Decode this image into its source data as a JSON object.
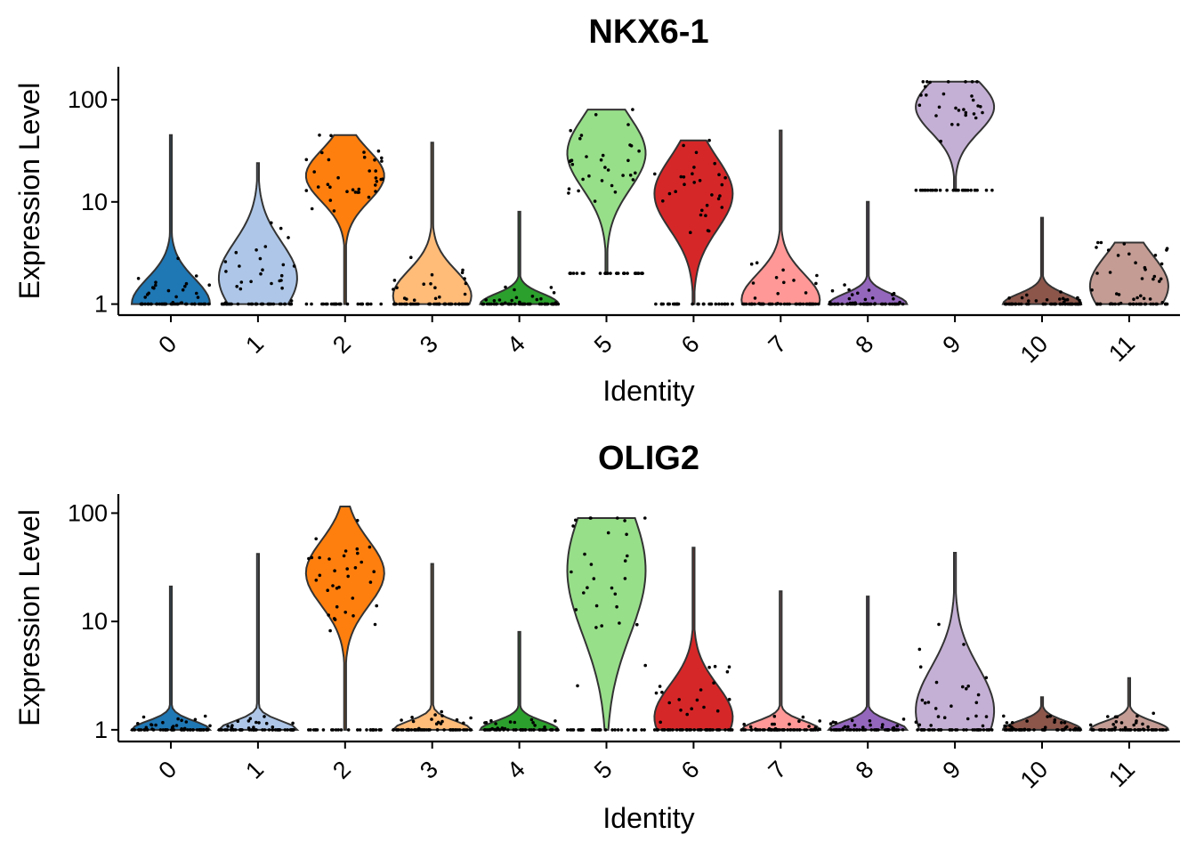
{
  "chart_data": [
    {
      "type": "violin",
      "title": "NKX6-1",
      "xlabel": "Identity",
      "ylabel": "Expression Level",
      "yscale": "log",
      "ylim": [
        0.78,
        210
      ],
      "yticks": [
        1,
        10,
        100
      ],
      "ytick_labels": [
        "1",
        "10",
        "100"
      ],
      "categories": [
        "0",
        "1",
        "2",
        "3",
        "4",
        "5",
        "6",
        "7",
        "8",
        "9",
        "10",
        "11"
      ],
      "colors": [
        "#1f77b4",
        "#aec7e8",
        "#ff7f0e",
        "#ffbb78",
        "#2ca02c",
        "#98df8a",
        "#d62728",
        "#ff9896",
        "#9467bd",
        "#c5b0d5",
        "#8c564b",
        "#c49c94"
      ],
      "groups": [
        {
          "id": "0",
          "min": 1,
          "max": 45,
          "mode": 1,
          "spread": 0.25
        },
        {
          "id": "1",
          "min": 1,
          "max": 24,
          "mode": 1.8,
          "spread": 0.35
        },
        {
          "id": "2",
          "min": 1,
          "max": 45,
          "mode": 18,
          "spread": 0.25
        },
        {
          "id": "3",
          "min": 1,
          "max": 38,
          "mode": 1.2,
          "spread": 0.25
        },
        {
          "id": "4",
          "min": 1,
          "max": 8,
          "mode": 1,
          "spread": 0.1
        },
        {
          "id": "5",
          "min": 2,
          "max": 80,
          "mode": 30,
          "spread": 0.35
        },
        {
          "id": "6",
          "min": 1,
          "max": 40,
          "mode": 12,
          "spread": 0.35
        },
        {
          "id": "7",
          "min": 1,
          "max": 50,
          "mode": 1.1,
          "spread": 0.25
        },
        {
          "id": "8",
          "min": 1,
          "max": 10,
          "mode": 1,
          "spread": 0.1
        },
        {
          "id": "9",
          "min": 13,
          "max": 150,
          "mode": 85,
          "spread": 0.25
        },
        {
          "id": "10",
          "min": 1,
          "max": 7,
          "mode": 1,
          "spread": 0.1
        },
        {
          "id": "11",
          "min": 1,
          "max": 4,
          "mode": 1.5,
          "spread": 0.3
        }
      ]
    },
    {
      "type": "violin",
      "title": "OLIG2",
      "xlabel": "Identity",
      "ylabel": "Expression Level",
      "yscale": "log",
      "ylim": [
        0.78,
        150
      ],
      "yticks": [
        1,
        10,
        100
      ],
      "ytick_labels": [
        "1",
        "10",
        "100"
      ],
      "categories": [
        "0",
        "1",
        "2",
        "3",
        "4",
        "5",
        "6",
        "7",
        "8",
        "9",
        "10",
        "11"
      ],
      "colors": [
        "#1f77b4",
        "#aec7e8",
        "#ff7f0e",
        "#ffbb78",
        "#2ca02c",
        "#98df8a",
        "#d62728",
        "#ff9896",
        "#9467bd",
        "#c5b0d5",
        "#8c564b",
        "#c49c94"
      ],
      "groups": [
        {
          "id": "0",
          "min": 1,
          "max": 21,
          "mode": 1,
          "spread": 0.08
        },
        {
          "id": "1",
          "min": 1,
          "max": 42,
          "mode": 1,
          "spread": 0.08
        },
        {
          "id": "2",
          "min": 1,
          "max": 115,
          "mode": 28,
          "spread": 0.3
        },
        {
          "id": "3",
          "min": 1,
          "max": 34,
          "mode": 1,
          "spread": 0.08
        },
        {
          "id": "4",
          "min": 1,
          "max": 8,
          "mode": 1,
          "spread": 0.08
        },
        {
          "id": "5",
          "min": 1,
          "max": 90,
          "mode": 30,
          "spread": 0.6
        },
        {
          "id": "6",
          "min": 1,
          "max": 48,
          "mode": 1.3,
          "spread": 0.3
        },
        {
          "id": "7",
          "min": 1,
          "max": 19,
          "mode": 1,
          "spread": 0.08
        },
        {
          "id": "8",
          "min": 1,
          "max": 17,
          "mode": 1,
          "spread": 0.08
        },
        {
          "id": "9",
          "min": 1,
          "max": 43,
          "mode": 1.5,
          "spread": 0.4
        },
        {
          "id": "10",
          "min": 1,
          "max": 2,
          "mode": 1,
          "spread": 0.08
        },
        {
          "id": "11",
          "min": 1,
          "max": 3,
          "mode": 1,
          "spread": 0.08
        }
      ]
    }
  ]
}
